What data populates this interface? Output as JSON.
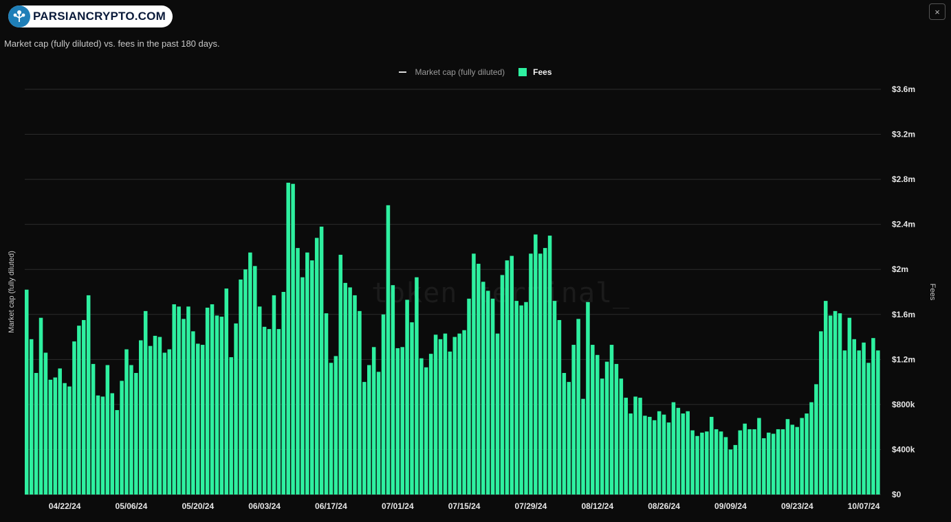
{
  "logo": {
    "text": "PARSIANCRYPTO.COM"
  },
  "close_label": "×",
  "subtitle": "Market cap (fully diluted) vs. fees in the past 180 days.",
  "legend": {
    "market_cap": "Market cap (fully diluted)",
    "fees": "Fees"
  },
  "axis": {
    "left_label": "Market cap (fully diluted)",
    "right_label": "Fees"
  },
  "watermark": "token terminal_",
  "colors": {
    "fees": "#2ef0a0",
    "background": "#0b0b0b",
    "grid": "#2c2c2c"
  },
  "chart_data": {
    "type": "bar",
    "title": "",
    "subtitle": "Market cap (fully diluted) vs. fees in the past 180 days.",
    "series": [
      {
        "name": "Fees",
        "values": [
          1820000,
          1380000,
          1080000,
          1570000,
          1260000,
          1020000,
          1040000,
          1120000,
          990000,
          960000,
          1360000,
          1500000,
          1550000,
          1770000,
          1160000,
          880000,
          870000,
          1150000,
          900000,
          750000,
          1010000,
          1290000,
          1150000,
          1080000,
          1370000,
          1630000,
          1320000,
          1410000,
          1400000,
          1260000,
          1290000,
          1690000,
          1670000,
          1560000,
          1670000,
          1450000,
          1340000,
          1330000,
          1660000,
          1690000,
          1590000,
          1580000,
          1830000,
          1220000,
          1520000,
          1910000,
          2000000,
          2150000,
          2030000,
          1670000,
          1490000,
          1470000,
          1770000,
          1470000,
          1800000,
          2770000,
          2760000,
          2190000,
          1930000,
          2150000,
          2080000,
          2280000,
          2380000,
          1610000,
          1170000,
          1230000,
          2130000,
          1880000,
          1840000,
          1770000,
          1630000,
          1000000,
          1150000,
          1310000,
          1090000,
          1600000,
          2570000,
          1860000,
          1300000,
          1310000,
          1730000,
          1530000,
          1930000,
          1210000,
          1130000,
          1250000,
          1420000,
          1380000,
          1430000,
          1270000,
          1400000,
          1430000,
          1460000,
          1740000,
          2140000,
          2050000,
          1890000,
          1810000,
          1740000,
          1430000,
          1950000,
          2080000,
          2120000,
          1720000,
          1680000,
          1710000,
          2140000,
          2310000,
          2140000,
          2190000,
          2300000,
          1720000,
          1550000,
          1080000,
          1000000,
          1330000,
          1560000,
          850000,
          1710000,
          1330000,
          1240000,
          1030000,
          1180000,
          1330000,
          1160000,
          1030000,
          860000,
          720000,
          870000,
          860000,
          700000,
          690000,
          660000,
          740000,
          710000,
          640000,
          820000,
          770000,
          720000,
          740000,
          570000,
          520000,
          550000,
          560000,
          690000,
          580000,
          560000,
          510000,
          400000,
          440000,
          570000,
          630000,
          580000,
          580000,
          680000,
          500000,
          550000,
          540000,
          580000,
          580000,
          670000,
          620000,
          600000,
          680000,
          720000,
          820000,
          980000,
          1450000,
          1720000,
          1590000,
          1630000,
          1610000,
          1280000,
          1570000,
          1380000,
          1280000,
          1350000,
          1170000,
          1390000,
          1280000
        ]
      }
    ],
    "x_tick_labels": [
      "04/22/24",
      "05/06/24",
      "05/20/24",
      "06/03/24",
      "06/17/24",
      "07/01/24",
      "07/15/24",
      "07/29/24",
      "08/12/24",
      "08/26/24",
      "09/09/24",
      "09/23/24",
      "10/07/24"
    ],
    "y_tick_labels": [
      "$0",
      "$400k",
      "$800k",
      "$1.2m",
      "$1.6m",
      "$2m",
      "$2.4m",
      "$2.8m",
      "$3.2m",
      "$3.6m"
    ],
    "ylim": [
      0,
      3600000
    ],
    "grid": true,
    "legend_position": "top-center"
  }
}
